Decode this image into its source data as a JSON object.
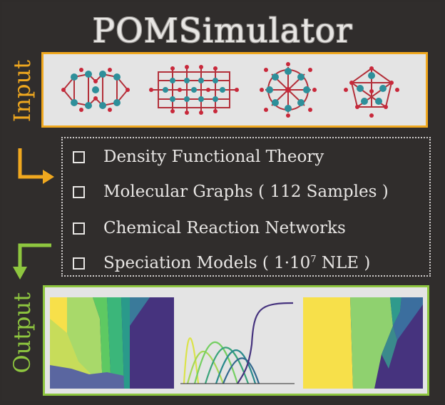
{
  "title": "POMSimulator",
  "input_label": "Input",
  "output_label": "Output",
  "methods": [
    {
      "label": "Density Functional Theory"
    },
    {
      "label": "Molecular Graphs ( 112 Samples )"
    },
    {
      "label": "Chemical Reaction Networks"
    },
    {
      "label": "Speciation Models ( 1·10",
      "superscript": "7",
      "suffix": " NLE )"
    }
  ],
  "colors": {
    "input_accent": "#f0a81f",
    "output_accent": "#8ec63f",
    "background": "#2f2c2b",
    "panel": "#e4e4e4",
    "viridis_purple": "#46337e",
    "viridis_yellow": "#f7e04a",
    "viridis_green": "#8fd16f",
    "viridis_teal": "#21908c"
  },
  "icons": [
    "checkbox-icon",
    "molecule-icon",
    "orange-bent-arrow-icon",
    "green-bent-arrow-icon"
  ]
}
